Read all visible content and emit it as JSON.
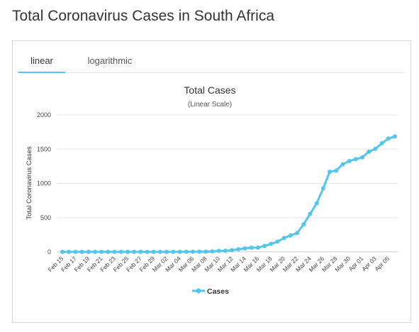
{
  "page": {
    "title": "Total Coronavirus Cases in South Africa"
  },
  "tabs": [
    {
      "label": "linear",
      "active": true
    },
    {
      "label": "logarithmic",
      "active": false
    }
  ],
  "colors": {
    "series": "#54c5eb",
    "tab_underline": "#54c5eb",
    "grid": "#e6e6e6"
  },
  "chart_data": {
    "type": "line",
    "title": "Total Cases",
    "subtitle": "(Linear Scale)",
    "xlabel": "",
    "ylabel": "Total Coronavirus Cases",
    "ylim": [
      0,
      2000
    ],
    "yticks": [
      0,
      500,
      1000,
      1500,
      2000
    ],
    "grid": true,
    "legend": "bottom-center",
    "x_tick_labels": [
      "Feb 15",
      "Feb 17",
      "Feb 19",
      "Feb 21",
      "Feb 23",
      "Feb 25",
      "Feb 27",
      "Feb 29",
      "Mar 02",
      "Mar 04",
      "Mar 06",
      "Mar 08",
      "Mar 10",
      "Mar 12",
      "Mar 14",
      "Mar 16",
      "Mar 18",
      "Mar 20",
      "Mar 22",
      "Mar 24",
      "Mar 26",
      "Mar 28",
      "Mar 30",
      "Apr 01",
      "Apr 03",
      "Apr 05"
    ],
    "x": [
      "Feb 15",
      "Feb 16",
      "Feb 17",
      "Feb 18",
      "Feb 19",
      "Feb 20",
      "Feb 21",
      "Feb 22",
      "Feb 23",
      "Feb 24",
      "Feb 25",
      "Feb 26",
      "Feb 27",
      "Feb 28",
      "Feb 29",
      "Mar 01",
      "Mar 02",
      "Mar 03",
      "Mar 04",
      "Mar 05",
      "Mar 06",
      "Mar 07",
      "Mar 08",
      "Mar 09",
      "Mar 10",
      "Mar 11",
      "Mar 12",
      "Mar 13",
      "Mar 14",
      "Mar 15",
      "Mar 16",
      "Mar 17",
      "Mar 18",
      "Mar 19",
      "Mar 20",
      "Mar 21",
      "Mar 22",
      "Mar 23",
      "Mar 24",
      "Mar 25",
      "Mar 26",
      "Mar 27",
      "Mar 28",
      "Mar 29",
      "Mar 30",
      "Mar 31",
      "Apr 01",
      "Apr 02",
      "Apr 03",
      "Apr 04",
      "Apr 05",
      "Apr 06"
    ],
    "series": [
      {
        "name": "Cases",
        "values": [
          0,
          0,
          0,
          0,
          0,
          0,
          0,
          0,
          0,
          0,
          0,
          0,
          0,
          0,
          0,
          0,
          0,
          0,
          0,
          1,
          1,
          2,
          3,
          7,
          13,
          16,
          24,
          38,
          51,
          61,
          62,
          85,
          116,
          150,
          202,
          240,
          274,
          402,
          554,
          709,
          927,
          1170,
          1187,
          1280,
          1326,
          1353,
          1380,
          1462,
          1505,
          1585,
          1655,
          1686
        ]
      }
    ]
  }
}
